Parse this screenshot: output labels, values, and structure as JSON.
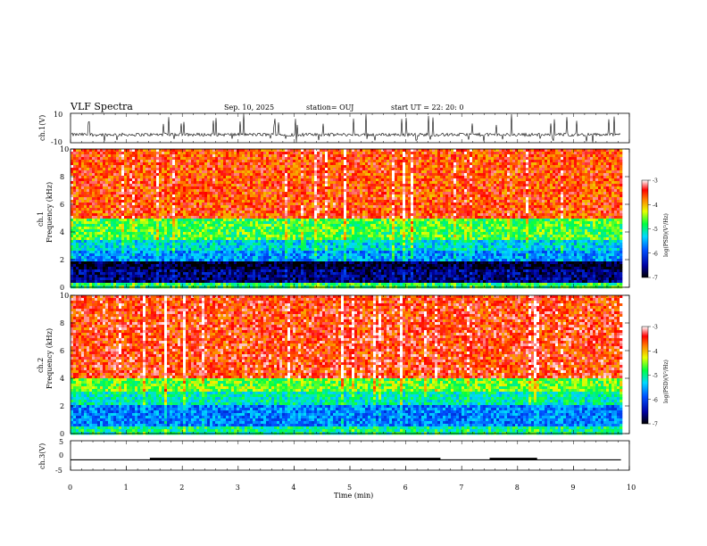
{
  "header": {
    "title": "VLF Spectra",
    "date": "Sep. 10, 2025",
    "station": "station= OUJ",
    "start": "start  UT  =   22: 20: 0"
  },
  "chart_data": [
    {
      "type": "line",
      "panel": "ch1-waveform",
      "ylabel": "ch.1(V)",
      "ylim": [
        -10,
        10
      ],
      "yticks": [
        "10",
        "-10"
      ],
      "xlim": [
        0,
        10
      ],
      "baseline": -4.5,
      "description_values": {
        "typical_range": [
          -7,
          -2
        ],
        "spike_max": 10,
        "spike_min": -10
      }
    },
    {
      "type": "heatmap",
      "panel": "ch1-spectrogram",
      "ylabel": "ch.1",
      "ylabel2": "Frequency  (kHz)",
      "ylim": [
        0,
        10
      ],
      "yticks": [
        "0",
        "2",
        "4",
        "6",
        "8",
        "10"
      ],
      "xlim": [
        0,
        9.85
      ],
      "colorbar": {
        "label": "log(PSD)(V²/Hz)",
        "ticks": [
          "-3",
          "-4",
          "-5",
          "-6",
          "-7"
        ],
        "range": [
          -7,
          -3
        ]
      },
      "bands_khz": [
        {
          "from": 0,
          "to": 0.4,
          "level": -4.8
        },
        {
          "from": 0.4,
          "to": 1.2,
          "level": -6.6
        },
        {
          "from": 1.2,
          "to": 1.8,
          "level": -6.9
        },
        {
          "from": 1.8,
          "to": 2.6,
          "level": -5.6
        },
        {
          "from": 2.6,
          "to": 3.4,
          "level": -5.3
        },
        {
          "from": 3.4,
          "to": 5.0,
          "level": -4.7
        },
        {
          "from": 5.0,
          "to": 10,
          "level": -3.6
        }
      ]
    },
    {
      "type": "heatmap",
      "panel": "ch2-spectrogram",
      "ylabel": "ch.2",
      "ylabel2": "Frequency  (kHz)",
      "ylim": [
        0,
        10
      ],
      "yticks": [
        "0",
        "2",
        "4",
        "6",
        "8",
        "10"
      ],
      "xlim": [
        0,
        9.85
      ],
      "colorbar": {
        "label": "log(PSD)(V²/Hz)",
        "ticks": [
          "-3",
          "-4",
          "-5",
          "-6",
          "-7"
        ],
        "range": [
          -7,
          -3
        ]
      },
      "bands_khz": [
        {
          "from": 0,
          "to": 0.5,
          "level": -5.0
        },
        {
          "from": 0.5,
          "to": 2.0,
          "level": -5.7
        },
        {
          "from": 2.0,
          "to": 3.0,
          "level": -5.1
        },
        {
          "from": 3.0,
          "to": 4.0,
          "level": -4.6
        },
        {
          "from": 4.0,
          "to": 10,
          "level": -3.5
        }
      ]
    },
    {
      "type": "line",
      "panel": "ch3-status",
      "ylabel": "ch.3(V)",
      "ylim": [
        -5,
        5
      ],
      "yticks": [
        "5",
        "0",
        "-5"
      ],
      "xlim": [
        0,
        10
      ],
      "xlabel": "Time  (min)",
      "xticks": [
        "0",
        "1",
        "2",
        "3",
        "4",
        "5",
        "6",
        "7",
        "8",
        "9",
        "10"
      ],
      "level": -1.5,
      "thick_segments": [
        [
          1.42,
          6.62
        ],
        [
          7.5,
          8.35
        ]
      ],
      "line_extent": [
        0,
        9.85
      ]
    }
  ]
}
